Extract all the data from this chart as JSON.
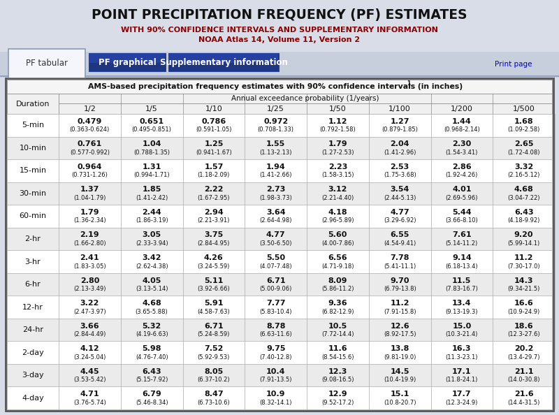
{
  "title": "POINT PRECIPITATION FREQUENCY (PF) ESTIMATES",
  "subtitle1": "WITH 90% CONFIDENCE INTERVALS AND SUPPLEMENTARY INFORMATION",
  "subtitle2": "NOAA Atlas 14, Volume 11, Version 2",
  "tab_labels": [
    "PF tabular",
    "PF graphical",
    "Supplementary information"
  ],
  "table_title": "AMS-based precipitation frequency estimates with 90% confidence intervals (in inches)",
  "table_title_superscript": "1",
  "col_header1": "Annual exceedance probability (1/years)",
  "col_header2": [
    "1/2",
    "1/5",
    "1/10",
    "1/25",
    "1/50",
    "1/100",
    "1/200",
    "1/500"
  ],
  "row_labels": [
    "5-min",
    "10-min",
    "15-min",
    "30-min",
    "60-min",
    "2-hr",
    "3-hr",
    "6-hr",
    "12-hr",
    "24-hr",
    "2-day",
    "3-day",
    "4-day"
  ],
  "main_values": [
    [
      "0.479",
      "0.651",
      "0.786",
      "0.972",
      "1.12",
      "1.27",
      "1.44",
      "1.68"
    ],
    [
      "0.761",
      "1.04",
      "1.25",
      "1.55",
      "1.79",
      "2.04",
      "2.30",
      "2.65"
    ],
    [
      "0.964",
      "1.31",
      "1.57",
      "1.94",
      "2.23",
      "2.53",
      "2.86",
      "3.32"
    ],
    [
      "1.37",
      "1.85",
      "2.22",
      "2.73",
      "3.12",
      "3.54",
      "4.01",
      "4.68"
    ],
    [
      "1.79",
      "2.44",
      "2.94",
      "3.64",
      "4.18",
      "4.77",
      "5.44",
      "6.43"
    ],
    [
      "2.19",
      "3.05",
      "3.75",
      "4.77",
      "5.60",
      "6.55",
      "7.61",
      "9.20"
    ],
    [
      "2.41",
      "3.42",
      "4.26",
      "5.50",
      "6.56",
      "7.78",
      "9.14",
      "11.2"
    ],
    [
      "2.80",
      "4.05",
      "5.11",
      "6.71",
      "8.09",
      "9.70",
      "11.5",
      "14.3"
    ],
    [
      "3.22",
      "4.68",
      "5.91",
      "7.77",
      "9.36",
      "11.2",
      "13.4",
      "16.6"
    ],
    [
      "3.66",
      "5.32",
      "6.71",
      "8.78",
      "10.5",
      "12.6",
      "15.0",
      "18.6"
    ],
    [
      "4.12",
      "5.98",
      "7.52",
      "9.75",
      "11.6",
      "13.8",
      "16.3",
      "20.2"
    ],
    [
      "4.45",
      "6.43",
      "8.05",
      "10.4",
      "12.3",
      "14.5",
      "17.1",
      "21.1"
    ],
    [
      "4.71",
      "6.79",
      "8.47",
      "10.9",
      "12.9",
      "15.1",
      "17.7",
      "21.6"
    ]
  ],
  "ci_values": [
    [
      "(0.363-0.624)",
      "(0.495-0.851)",
      "(0.591-1.05)",
      "(0.708-1.33)",
      "(0.792-1.58)",
      "(0.879-1.85)",
      "(0.968-2.14)",
      "(1.09-2.58)"
    ],
    [
      "(0.577-0.992)",
      "(0.788-1.35)",
      "(0.941-1.67)",
      "(1.13-2.13)",
      "(1.27-2.53)",
      "(1.41-2.96)",
      "(1.54-3.41)",
      "(1.72-4.08)"
    ],
    [
      "(0.731-1.26)",
      "(0.994-1.71)",
      "(1.18-2.09)",
      "(1.41-2.66)",
      "(1.58-3.15)",
      "(1.75-3.68)",
      "(1.92-4.26)",
      "(2.16-5.12)"
    ],
    [
      "(1.04-1.79)",
      "(1.41-2.42)",
      "(1.67-2.95)",
      "(1.98-3.73)",
      "(2.21-4.40)",
      "(2.44-5.13)",
      "(2.69-5.96)",
      "(3.04-7.22)"
    ],
    [
      "(1.36-2.34)",
      "(1.86-3.19)",
      "(2.21-3.91)",
      "(2.64-4.98)",
      "(2.96-5.89)",
      "(3.29-6.92)",
      "(3.66-8.10)",
      "(4.18-9.92)"
    ],
    [
      "(1.66-2.80)",
      "(2.33-3.94)",
      "(2.84-4.95)",
      "(3.50-6.50)",
      "(4.00-7.86)",
      "(4.54-9.41)",
      "(5.14-11.2)",
      "(5.99-14.1)"
    ],
    [
      "(1.83-3.05)",
      "(2.62-4.38)",
      "(3.24-5.59)",
      "(4.07-7.48)",
      "(4.71-9.18)",
      "(5.41-11.1)",
      "(6.18-13.4)",
      "(7.30-17.0)"
    ],
    [
      "(2.13-3.49)",
      "(3.13-5.14)",
      "(3.92-6.66)",
      "(5.00-9.06)",
      "(5.86-11.2)",
      "(6.79-13.8)",
      "(7.83-16.7)",
      "(9.34-21.5)"
    ],
    [
      "(2.47-3.97)",
      "(3.65-5.88)",
      "(4.58-7.63)",
      "(5.83-10.4)",
      "(6.82-12.9)",
      "(7.91-15.8)",
      "(9.13-19.3)",
      "(10.9-24.9)"
    ],
    [
      "(2.84-4.49)",
      "(4.19-6.63)",
      "(5.24-8.59)",
      "(6.63-11.6)",
      "(7.72-14.4)",
      "(8.92-17.5)",
      "(10.3-21.4)",
      "(12.3-27.6)"
    ],
    [
      "(3.24-5.04)",
      "(4.76-7.40)",
      "(5.92-9.53)",
      "(7.40-12.8)",
      "(8.54-15.6)",
      "(9.81-19.0)",
      "(11.3-23.1)",
      "(13.4-29.7)"
    ],
    [
      "(3.53-5.42)",
      "(5.15-7.92)",
      "(6.37-10.2)",
      "(7.91-13.5)",
      "(9.08-16.5)",
      "(10.4-19.9)",
      "(11.8-24.1)",
      "(14.0-30.8)"
    ],
    [
      "(3.76-5.74)",
      "(5.46-8.34)",
      "(6.73-10.6)",
      "(8.32-14.1)",
      "(9.52-17.2)",
      "(10.8-20.7)",
      "(12.3-24.9)",
      "(14.4-31.5)"
    ]
  ]
}
